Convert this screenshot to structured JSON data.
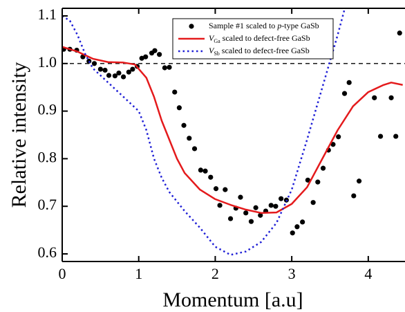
{
  "chart_data": {
    "type": "scatter-line",
    "xlabel": "Momentum [a.u]",
    "ylabel": "Relative intensity",
    "xlim": [
      0,
      4.48
    ],
    "ylim": [
      0.584,
      1.116
    ],
    "xticks": [
      0,
      1,
      2,
      3,
      4
    ],
    "yticks": [
      0.6,
      0.7,
      0.8,
      0.9,
      {
        "value": 1,
        "label": "1.0"
      },
      1.1
    ],
    "hline": 1,
    "series": [
      {
        "kind": "scatter",
        "color": "#000000",
        "label": [
          {
            "text": "Sample #1 scaled to "
          },
          {
            "text": "p",
            "style": "italic"
          },
          {
            "text": "-type GaSb"
          }
        ],
        "x": [
          0.02,
          0.1,
          0.19,
          0.27,
          0.35,
          0.42,
          0.5,
          0.56,
          0.61,
          0.69,
          0.74,
          0.8,
          0.87,
          0.92,
          0.98,
          1.04,
          1.09,
          1.17,
          1.21,
          1.27,
          1.34,
          1.4,
          1.47,
          1.53,
          1.59,
          1.66,
          1.73,
          1.81,
          1.87,
          1.94,
          2.01,
          2.06,
          2.13,
          2.2,
          2.27,
          2.33,
          2.4,
          2.47,
          2.53,
          2.59,
          2.66,
          2.73,
          2.79,
          2.86,
          2.93,
          3.01,
          3.07,
          3.14,
          3.21,
          3.28,
          3.34,
          3.41,
          3.48,
          3.54,
          3.61,
          3.69,
          3.75,
          3.81,
          3.88,
          4.08,
          4.16,
          4.3,
          4.36,
          4.41
        ],
        "values": [
          1.03,
          1.03,
          1.028,
          1.014,
          1.005,
          1.0,
          0.988,
          0.986,
          0.975,
          0.974,
          0.98,
          0.972,
          0.982,
          0.988,
          0.994,
          1.011,
          1.014,
          1.022,
          1.027,
          1.019,
          0.991,
          0.992,
          0.94,
          0.907,
          0.87,
          0.843,
          0.821,
          0.776,
          0.774,
          0.761,
          0.737,
          0.702,
          0.735,
          0.674,
          0.696,
          0.719,
          0.686,
          0.668,
          0.697,
          0.681,
          0.69,
          0.702,
          0.7,
          0.716,
          0.713,
          0.644,
          0.657,
          0.667,
          0.755,
          0.708,
          0.751,
          0.78,
          0.818,
          0.83,
          0.846,
          0.937,
          0.96,
          0.722,
          0.753,
          0.928,
          0.847,
          0.928,
          0.847,
          1.064
        ]
      },
      {
        "kind": "line",
        "color": "#e41a1c",
        "dash": "solid",
        "label": [
          {
            "text": "V",
            "style": "italic"
          },
          {
            "text": "Ga",
            "style": "sub"
          },
          {
            "text": " scaled to defect-free GaSb"
          }
        ],
        "x": [
          0,
          0.2,
          0.4,
          0.6,
          0.8,
          0.95,
          1.1,
          1.2,
          1.3,
          1.4,
          1.5,
          1.6,
          1.8,
          2.0,
          2.2,
          2.4,
          2.6,
          2.8,
          3.0,
          3.2,
          3.4,
          3.6,
          3.8,
          4.0,
          4.2,
          4.3,
          4.45
        ],
        "values": [
          1.035,
          1.025,
          1.01,
          1.003,
          1.002,
          0.998,
          0.97,
          0.93,
          0.88,
          0.84,
          0.8,
          0.77,
          0.735,
          0.715,
          0.703,
          0.693,
          0.686,
          0.687,
          0.705,
          0.74,
          0.8,
          0.86,
          0.91,
          0.94,
          0.955,
          0.96,
          0.955
        ]
      },
      {
        "kind": "line",
        "color": "#1f1fd6",
        "dash": "dotted",
        "label": [
          {
            "text": "V",
            "style": "italic"
          },
          {
            "text": "Sb",
            "style": "sub"
          },
          {
            "text": " scaled to defect-free GaSb"
          }
        ],
        "x": [
          0,
          0.1,
          0.2,
          0.3,
          0.4,
          0.6,
          0.8,
          1.0,
          1.1,
          1.2,
          1.3,
          1.4,
          1.6,
          1.8,
          2.0,
          2.2,
          2.4,
          2.6,
          2.8,
          3.0,
          3.2,
          3.4,
          3.6,
          3.7
        ],
        "values": [
          1.1,
          1.09,
          1.06,
          1.02,
          0.99,
          0.96,
          0.93,
          0.9,
          0.86,
          0.8,
          0.76,
          0.73,
          0.69,
          0.655,
          0.615,
          0.598,
          0.605,
          0.625,
          0.665,
          0.735,
          0.84,
          0.95,
          1.06,
          1.12
        ]
      }
    ]
  }
}
